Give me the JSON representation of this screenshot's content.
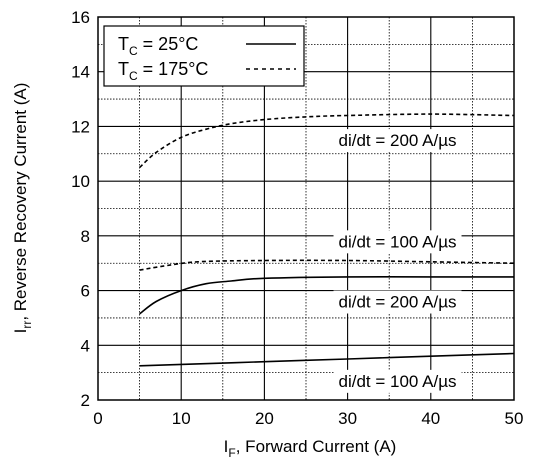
{
  "chart_data": {
    "type": "line",
    "xlabel": {
      "main": "I",
      "sub": "F",
      "rest": ", Forward Current (A)"
    },
    "ylabel": {
      "main": "I",
      "sub": "rr",
      "rest": ", Reverse Recovery Current (A)"
    },
    "xlim": [
      0,
      50
    ],
    "ylim": [
      2,
      16
    ],
    "xticks": [
      0,
      10,
      20,
      30,
      40,
      50
    ],
    "yticks": [
      2,
      4,
      6,
      8,
      10,
      12,
      14,
      16
    ],
    "grid": "major and minor",
    "legend": {
      "placement": "top-left",
      "entries": [
        {
          "main": "T",
          "sub": "C",
          "rest": " = 25°C",
          "style": "solid"
        },
        {
          "main": "T",
          "sub": "C",
          "rest": " = 175°C",
          "style": "dashed"
        }
      ]
    },
    "series": [
      {
        "condition": "Tc = 175°C, di/dt = 200 A/µs",
        "style": "dashed",
        "points": [
          [
            5,
            10.5
          ],
          [
            7,
            11.05
          ],
          [
            10,
            11.6
          ],
          [
            13,
            11.9
          ],
          [
            16,
            12.1
          ],
          [
            20,
            12.25
          ],
          [
            25,
            12.35
          ],
          [
            30,
            12.4
          ],
          [
            40,
            12.45
          ],
          [
            50,
            12.4
          ]
        ]
      },
      {
        "condition": "Tc = 175°C, di/dt = 100 A/µs",
        "style": "dashed",
        "points": [
          [
            5,
            6.75
          ],
          [
            8,
            6.9
          ],
          [
            12,
            7.05
          ],
          [
            20,
            7.1
          ],
          [
            30,
            7.1
          ],
          [
            40,
            7.05
          ],
          [
            50,
            7.0
          ]
        ]
      },
      {
        "condition": "Tc = 25°C, di/dt = 200 A/µs",
        "style": "solid",
        "points": [
          [
            5,
            5.15
          ],
          [
            7,
            5.6
          ],
          [
            10,
            6.0
          ],
          [
            13,
            6.25
          ],
          [
            16,
            6.35
          ],
          [
            20,
            6.45
          ],
          [
            30,
            6.5
          ],
          [
            40,
            6.5
          ],
          [
            50,
            6.5
          ]
        ]
      },
      {
        "condition": "Tc = 25°C, di/dt = 100 A/µs",
        "style": "solid",
        "points": [
          [
            5,
            3.25
          ],
          [
            10,
            3.3
          ],
          [
            20,
            3.4
          ],
          [
            30,
            3.5
          ],
          [
            40,
            3.6
          ],
          [
            50,
            3.7
          ]
        ]
      }
    ],
    "annotations": [
      {
        "text": "di/dt = 200 A/µs",
        "x": 36,
        "y": 11.5
      },
      {
        "text": "di/dt = 100 A/µs",
        "x": 36,
        "y": 7.8
      },
      {
        "text": "di/dt = 200 A/µs",
        "x": 36,
        "y": 5.6
      },
      {
        "text": "di/dt = 100 A/µs",
        "x": 36,
        "y": 2.7
      }
    ]
  }
}
